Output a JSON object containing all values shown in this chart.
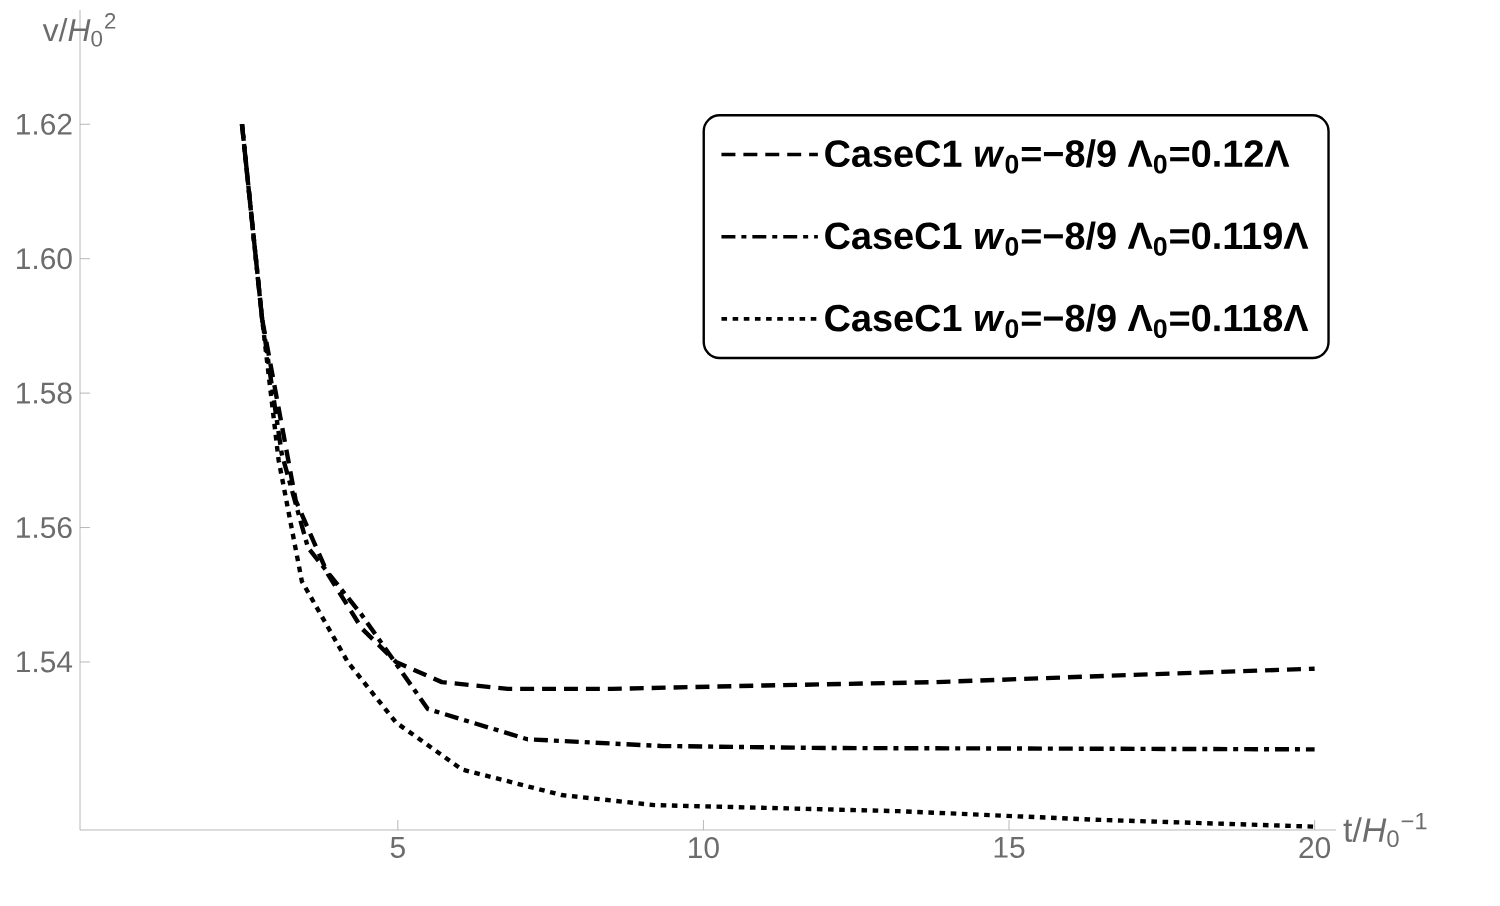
{
  "chart_data": {
    "type": "line",
    "xlabel": "t/*H*$_{0}$$^{−1}$",
    "ylabel": "v/*H*$_{0}$$^{2}$",
    "xlim": [
      -0.2,
      20.35
    ],
    "ylim": [
      1.515,
      1.637
    ],
    "xticks": [
      5,
      10,
      15,
      20
    ],
    "yticks": [
      1.54,
      1.56,
      1.58,
      {
        "value": 1.6,
        "label": "1.60"
      },
      1.62
    ],
    "grid": false,
    "legend": "top right",
    "marker": "none",
    "series": [
      {
        "name": "CaseC1 *w*$_{0}$=−8/9 Λ$_{0}$=0.12Λ",
        "color": "#000000",
        "line_style": "dashed",
        "x": [
          2.45,
          2.78,
          3.33,
          3.86,
          4.41,
          4.97,
          5.72,
          6.8,
          8.5,
          11.0,
          13.8,
          16.8,
          20.0
        ],
        "values": [
          1.62,
          1.591,
          1.564,
          1.553,
          1.545,
          1.54,
          1.537,
          1.536,
          1.536,
          1.5365,
          1.537,
          1.538,
          1.539
        ]
      },
      {
        "name": "CaseC1 *w*$_{0}$=−8/9 Λ$_{0}$=0.119Λ",
        "color": "#000000",
        "line_style": "dashdot",
        "x": [
          2.45,
          2.78,
          3.1,
          3.53,
          4.41,
          5.49,
          7.12,
          9.31,
          12.0,
          16.0,
          20.0
        ],
        "values": [
          1.62,
          1.591,
          1.571,
          1.557,
          1.547,
          1.533,
          1.5285,
          1.5275,
          1.5272,
          1.5271,
          1.527
        ]
      },
      {
        "name": "CaseC1 *w*$_{0}$=−8/9 Λ$_{0}$=0.118Λ",
        "color": "#000000",
        "line_style": "dotted",
        "x": [
          2.45,
          2.78,
          3.05,
          3.43,
          4.18,
          4.97,
          6.05,
          7.68,
          9.2,
          11.0,
          13.2,
          16.5,
          20.0
        ],
        "values": [
          1.62,
          1.591,
          1.57,
          1.552,
          1.54,
          1.531,
          1.524,
          1.5202,
          1.5187,
          1.5183,
          1.5178,
          1.5165,
          1.5155
        ]
      }
    ]
  }
}
